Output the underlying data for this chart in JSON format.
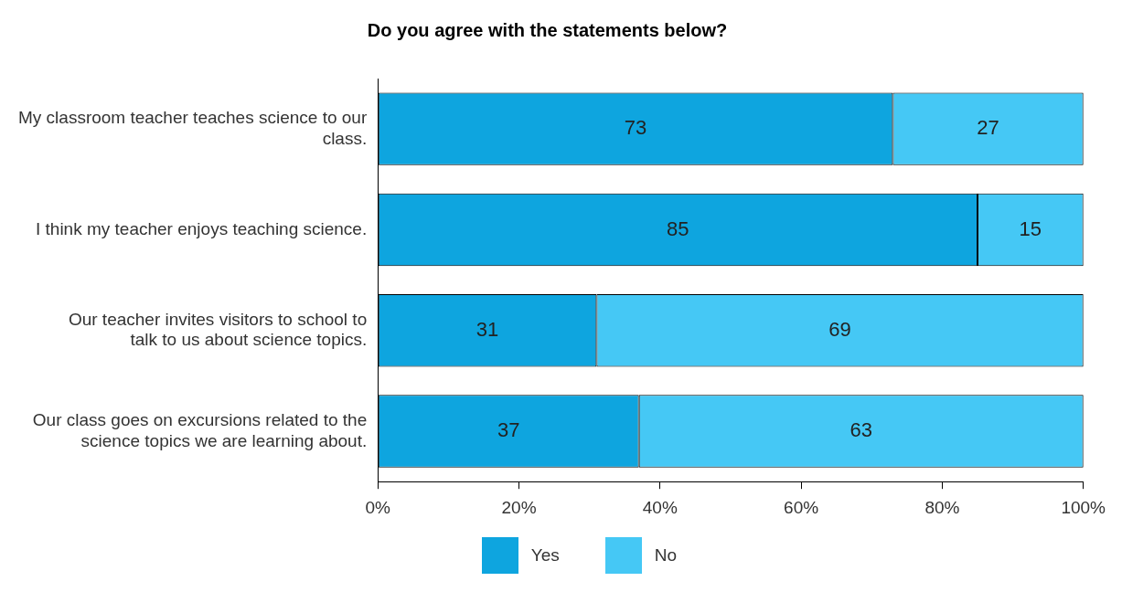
{
  "chart_data": {
    "type": "bar",
    "orientation": "horizontal",
    "stacked": true,
    "title": "Do you agree with the statements below?",
    "categories": [
      "My classroom teacher teaches science to our class.",
      "I think my teacher enjoys teaching science.",
      "Our teacher invites visitors to school to talk to us about science topics.",
      "Our class goes on excursions related to the science topics we are learning about."
    ],
    "series": [
      {
        "name": "Yes",
        "color": "#0ea5df",
        "values": [
          73,
          85,
          31,
          37
        ]
      },
      {
        "name": "No",
        "color": "#45c8f5",
        "values": [
          27,
          15,
          69,
          63
        ]
      }
    ],
    "xlim": [
      0,
      100
    ],
    "xticks": [
      {
        "value": 0,
        "label": "0%"
      },
      {
        "value": 20,
        "label": "20%"
      },
      {
        "value": 40,
        "label": "40%"
      },
      {
        "value": 60,
        "label": "60%"
      },
      {
        "value": 80,
        "label": "80%"
      },
      {
        "value": 100,
        "label": "100%"
      }
    ],
    "data_labels": true,
    "grid": false,
    "legend": "bottom"
  }
}
